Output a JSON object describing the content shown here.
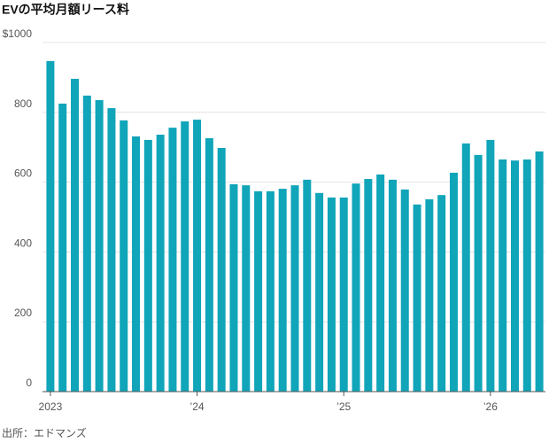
{
  "chart_data": {
    "type": "bar",
    "title": "EVの平均月額リース料",
    "source": "出所：エドマンズ",
    "categories": [
      "2023",
      null,
      null,
      null,
      null,
      null,
      null,
      null,
      null,
      null,
      null,
      null,
      "’24",
      null,
      null,
      null,
      null,
      null,
      null,
      null,
      null,
      null,
      null,
      null,
      "’25",
      null,
      null,
      null,
      null,
      null,
      null,
      null,
      null,
      null,
      null,
      null,
      "’26",
      null,
      null,
      null,
      null
    ],
    "values": [
      947,
      825,
      896,
      848,
      835,
      812,
      777,
      731,
      721,
      736,
      756,
      774,
      779,
      726,
      698,
      594,
      591,
      574,
      574,
      581,
      591,
      607,
      569,
      556,
      556,
      596,
      609,
      622,
      607,
      579,
      536,
      551,
      563,
      627,
      711,
      678,
      721,
      665,
      662,
      665,
      688
    ],
    "color": "#10a5b9",
    "ylim": [
      0,
      1000
    ],
    "yticks": [
      0,
      200,
      400,
      600,
      800,
      {
        "value": 1000,
        "label": "$1000"
      }
    ],
    "grid": true
  }
}
